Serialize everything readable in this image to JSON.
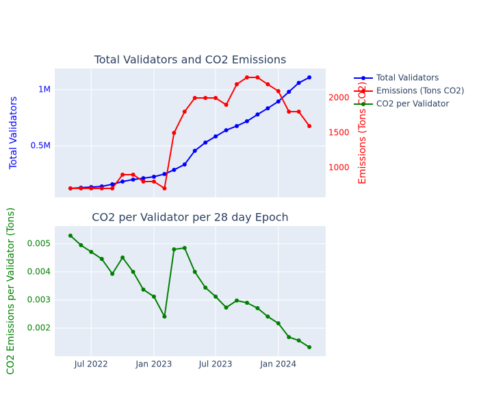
{
  "chart_data": [
    {
      "type": "line",
      "title": "Total Validators and CO2 Emissions",
      "ylabel": "Total Validators",
      "y2label": "Emissions (Tons CO2)",
      "x": [
        "2022-05",
        "2022-06",
        "2022-07",
        "2022-08",
        "2022-09",
        "2022-10",
        "2022-11",
        "2022-12",
        "2023-01",
        "2023-02",
        "2023-03",
        "2023-04",
        "2023-05",
        "2023-06",
        "2023-07",
        "2023-08",
        "2023-09",
        "2023-10",
        "2023-11",
        "2023-12",
        "2024-01",
        "2024-02",
        "2024-03",
        "2024-04"
      ],
      "series": [
        {
          "name": "Total Validators",
          "color": "#0000ff",
          "axis": "y",
          "values": [
            122000,
            128000,
            134000,
            140000,
            159000,
            183000,
            201000,
            213000,
            226000,
            250000,
            287000,
            335000,
            457000,
            530000,
            585000,
            640000,
            677000,
            720000,
            780000,
            835000,
            896000,
            982000,
            1061000,
            1110000
          ]
        },
        {
          "name": "Emissions (Tons CO2)",
          "color": "#ff0000",
          "axis": "y2",
          "values": [
            706,
            706,
            706,
            706,
            706,
            902,
            902,
            804,
            804,
            706,
            1500,
            1804,
            2000,
            2000,
            2000,
            1902,
            2196,
            2294,
            2294,
            2196,
            2098,
            1804,
            1804,
            1598
          ]
        }
      ],
      "ylim": [
        43000,
        1189000
      ],
      "yticks": [
        {
          "value": 500000,
          "label": "0.5M"
        },
        {
          "value": 1000000,
          "label": "1M"
        }
      ],
      "y2lim": [
        578,
        2422
      ],
      "y2ticks": [
        1000,
        1500,
        2000
      ],
      "grid": true,
      "legend": "top-right"
    },
    {
      "type": "line",
      "title": "CO2 per Validator per 28 day Epoch",
      "ylabel": "CO2 Emissions per Validator (Tons)",
      "x": [
        "2022-05",
        "2022-06",
        "2022-07",
        "2022-08",
        "2022-09",
        "2022-10",
        "2022-11",
        "2022-12",
        "2023-01",
        "2023-02",
        "2023-03",
        "2023-04",
        "2023-05",
        "2023-06",
        "2023-07",
        "2023-08",
        "2023-09",
        "2023-10",
        "2023-11",
        "2023-12",
        "2024-01",
        "2024-02",
        "2024-03",
        "2024-04"
      ],
      "series": [
        {
          "name": "CO2 per Validator",
          "color": "#008000",
          "axis": "y",
          "values": [
            0.00529,
            0.00495,
            0.00471,
            0.00446,
            0.00393,
            0.00451,
            0.004,
            0.00337,
            0.00312,
            0.00241,
            0.0048,
            0.00485,
            0.004,
            0.00344,
            0.00312,
            0.00273,
            0.00298,
            0.0029,
            0.00271,
            0.00241,
            0.00217,
            0.00168,
            0.00156,
            0.00132
          ]
        }
      ],
      "xlim": [
        "2022-03-16",
        "2024-05-19"
      ],
      "xticks": [
        {
          "value": "2022-07",
          "label": "Jul 2022"
        },
        {
          "value": "2023-01",
          "label": "Jan 2023"
        },
        {
          "value": "2023-07",
          "label": "Jul 2023"
        },
        {
          "value": "2024-01",
          "label": "Jan 2024"
        }
      ],
      "ylim": [
        0.001,
        0.00563
      ],
      "yticks": [
        0.002,
        0.003,
        0.004,
        0.005
      ],
      "grid": true
    }
  ]
}
